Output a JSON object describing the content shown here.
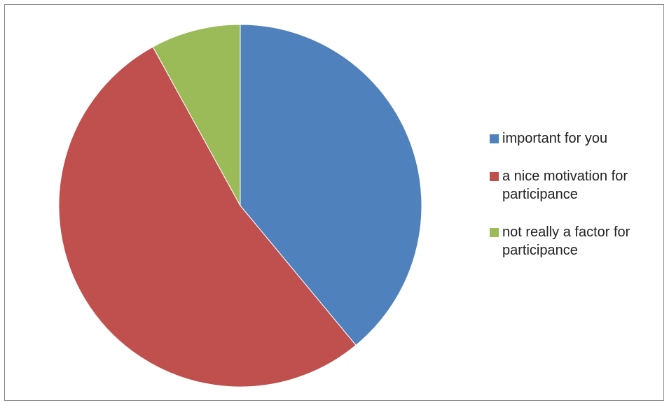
{
  "chart_data": {
    "type": "pie",
    "title": "",
    "categories": [
      "important for you",
      "a nice motivation for participance",
      "not really a factor for participance"
    ],
    "values": [
      39,
      53,
      8
    ],
    "colors": [
      "#4F81BD",
      "#C0504D",
      "#9BBB59"
    ],
    "legend_position": "right",
    "start_angle": "12 o'clock",
    "direction": "clockwise"
  }
}
